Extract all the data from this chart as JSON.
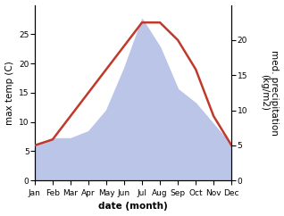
{
  "months": [
    "Jan",
    "Feb",
    "Mar",
    "Apr",
    "May",
    "Jun",
    "Jul",
    "Aug",
    "Sep",
    "Oct",
    "Nov",
    "Dec"
  ],
  "temp": [
    6,
    7,
    11,
    15,
    19,
    23,
    27,
    27,
    24,
    19,
    11,
    6
  ],
  "precip": [
    5,
    6,
    6,
    7,
    10,
    16,
    23,
    19,
    13,
    11,
    8,
    5
  ],
  "temp_color": "#c0392b",
  "precip_fill_color": "#bbc5e8",
  "background_color": "#ffffff",
  "xlabel": "date (month)",
  "ylabel_left": "max temp (C)",
  "ylabel_right": "med. precipitation\n(kg/m2)",
  "ylim_left": [
    0,
    30
  ],
  "ylim_right": [
    0,
    25
  ],
  "yticks_left": [
    0,
    5,
    10,
    15,
    20,
    25
  ],
  "yticks_right": [
    0,
    5,
    10,
    15,
    20
  ],
  "temp_linewidth": 1.8,
  "label_fontsize": 7.5,
  "tick_fontsize": 6.5
}
